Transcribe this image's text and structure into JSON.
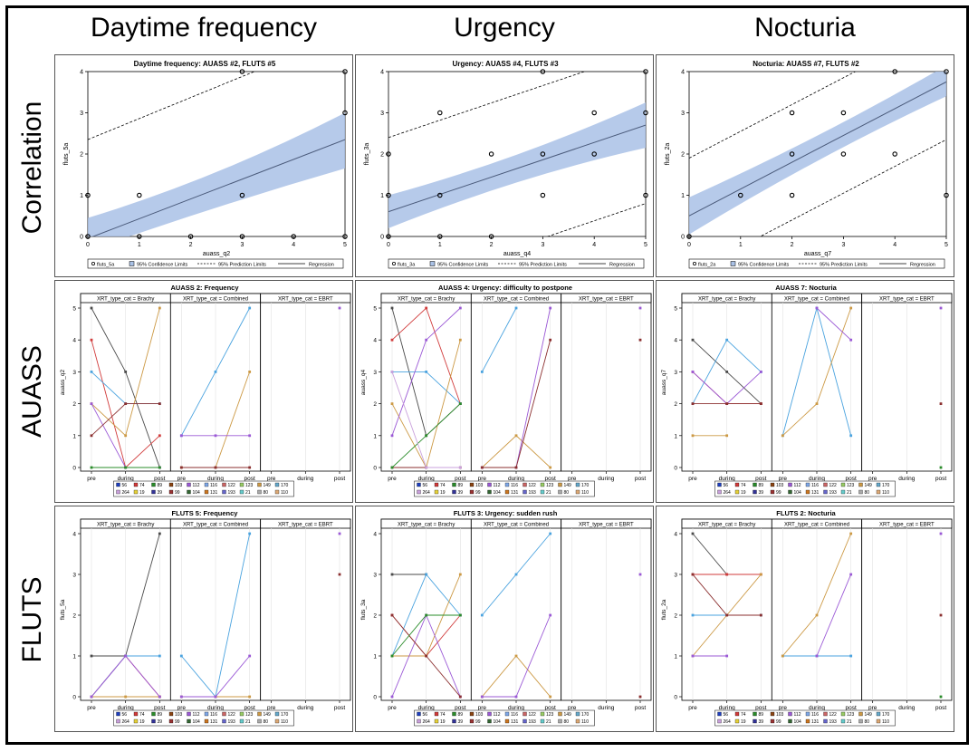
{
  "column_headers": [
    "Daytime frequency",
    "Urgency",
    "Nocturia"
  ],
  "row_headers": [
    "Correlation",
    "AUASS",
    "FLUTS"
  ],
  "chart_data": [
    {
      "type": "scatter",
      "title": "Daytime frequency: AUASS #2, FLUTS #5",
      "xlabel": "auass_q2",
      "ylabel": "fluts_5a",
      "xlim": [
        0,
        5
      ],
      "ylim": [
        0,
        4
      ],
      "xticks": [
        0,
        1,
        2,
        3,
        4,
        5
      ],
      "yticks": [
        0,
        1,
        2,
        3,
        4
      ],
      "points": [
        [
          0,
          0
        ],
        [
          0,
          1
        ],
        [
          1,
          0
        ],
        [
          1,
          1
        ],
        [
          2,
          0
        ],
        [
          3,
          0
        ],
        [
          3,
          1
        ],
        [
          3,
          4
        ],
        [
          4,
          0
        ],
        [
          5,
          0
        ],
        [
          5,
          3
        ],
        [
          5,
          4
        ]
      ],
      "regression": {
        "x0": 0,
        "y0": -0.05,
        "x1": 5,
        "y1": 2.35
      },
      "confidence": {
        "lower0": -0.35,
        "upper0": 0.45,
        "lowerMid": 0.75,
        "upperMid": 1.4,
        "lower1": 1.65,
        "upper1": 3.0
      },
      "prediction": {
        "lower0": -2.4,
        "upper0": 2.35,
        "lower1": 0.0,
        "upper1": 4.9
      },
      "legend": [
        "fluts_5a",
        "95% Confidence Limits",
        "95% Prediction Limits",
        "Regression"
      ]
    },
    {
      "type": "scatter",
      "title": "Urgency: AUASS #4, FLUTS #3",
      "xlabel": "auass_q4",
      "ylabel": "fluts_3a",
      "xlim": [
        0,
        5
      ],
      "ylim": [
        0,
        4
      ],
      "xticks": [
        0,
        1,
        2,
        3,
        4,
        5
      ],
      "yticks": [
        0,
        1,
        2,
        3,
        4
      ],
      "points": [
        [
          0,
          0
        ],
        [
          0,
          1
        ],
        [
          0,
          2
        ],
        [
          1,
          0
        ],
        [
          1,
          1
        ],
        [
          1,
          3
        ],
        [
          2,
          0
        ],
        [
          2,
          2
        ],
        [
          3,
          1
        ],
        [
          3,
          2
        ],
        [
          3,
          4
        ],
        [
          4,
          2
        ],
        [
          4,
          3
        ],
        [
          5,
          1
        ],
        [
          5,
          3
        ],
        [
          5,
          4
        ]
      ],
      "regression": {
        "x0": 0,
        "y0": 0.6,
        "x1": 5,
        "y1": 2.7
      },
      "confidence": {
        "lower0": 0.2,
        "upper0": 1.0,
        "lowerMid": 1.45,
        "upperMid": 1.85,
        "lower1": 2.15,
        "upper1": 3.25
      },
      "prediction": {
        "lower0": -1.3,
        "upper0": 2.4,
        "lower1": 0.8,
        "upper1": 4.5
      },
      "legend": [
        "fluts_3a",
        "95% Confidence Limits",
        "95% Prediction Limits",
        "Regression"
      ]
    },
    {
      "type": "scatter",
      "title": "Nocturia: AUASS #7, FLUTS #2",
      "xlabel": "auass_q7",
      "ylabel": "fluts_2a",
      "xlim": [
        0,
        5
      ],
      "ylim": [
        0,
        4
      ],
      "xticks": [
        0,
        1,
        2,
        3,
        4,
        5
      ],
      "yticks": [
        0,
        1,
        2,
        3,
        4
      ],
      "points": [
        [
          0,
          0
        ],
        [
          1,
          1
        ],
        [
          2,
          1
        ],
        [
          2,
          2
        ],
        [
          2,
          3
        ],
        [
          3,
          2
        ],
        [
          3,
          3
        ],
        [
          4,
          2
        ],
        [
          4,
          4
        ],
        [
          5,
          1
        ],
        [
          5,
          4
        ]
      ],
      "regression": {
        "x0": 0,
        "y0": 0.5,
        "x1": 5,
        "y1": 3.75
      },
      "confidence": {
        "lower0": 0.05,
        "upper0": 0.95,
        "lowerMid": 1.95,
        "upperMid": 2.35,
        "lower1": 3.4,
        "upper1": 4.15
      },
      "prediction": {
        "lower0": -0.9,
        "upper0": 1.9,
        "lower1": 2.35,
        "upper1": 5.15
      },
      "legend": [
        "fluts_2a",
        "95% Confidence Limits",
        "95% Prediction Limits",
        "Regression"
      ]
    },
    {
      "type": "line",
      "title": "AUASS 2: Frequency",
      "ylabel": "auass_q2",
      "ylim": [
        0,
        5
      ],
      "yticks": [
        0,
        1,
        2,
        3,
        4,
        5
      ],
      "categories": [
        "pre",
        "during",
        "post"
      ],
      "facets": [
        "XRT_type_cat = Brachy",
        "XRT_type_cat = Combined",
        "XRT_type_cat = EBRT"
      ],
      "series": [
        [
          [
            5,
            3,
            0
          ],
          [
            4,
            0,
            1
          ],
          [
            3,
            2,
            2
          ],
          [
            2,
            1,
            5
          ],
          [
            2,
            0,
            0
          ],
          [
            1,
            2,
            2
          ],
          [
            0,
            0,
            0
          ]
        ],
        [
          [
            1,
            3,
            5
          ],
          [
            0,
            0,
            3
          ],
          [
            1,
            1,
            1
          ],
          [
            0,
            0,
            0
          ]
        ],
        [
          [
            null,
            null,
            5
          ]
        ]
      ]
    },
    {
      "type": "line",
      "title": "AUASS 4: Urgency: difficulty to postpone",
      "ylabel": "auass_q4",
      "ylim": [
        0,
        5
      ],
      "yticks": [
        0,
        1,
        2,
        3,
        4,
        5
      ],
      "categories": [
        "pre",
        "during",
        "post"
      ],
      "facets": [
        "XRT_type_cat = Brachy",
        "XRT_type_cat = Combined",
        "XRT_type_cat = EBRT"
      ],
      "series": [
        [
          [
            5,
            1,
            2
          ],
          [
            4,
            5,
            2
          ],
          [
            3,
            3,
            2
          ],
          [
            2,
            0,
            4
          ],
          [
            1,
            4,
            5
          ],
          [
            0,
            0,
            0
          ],
          [
            0,
            1,
            2
          ],
          [
            3,
            0,
            0
          ]
        ],
        [
          [
            3,
            5,
            null
          ],
          [
            0,
            1,
            0
          ],
          [
            0,
            0,
            5
          ],
          [
            0,
            0,
            4
          ]
        ],
        [
          [
            null,
            null,
            5
          ],
          [
            null,
            null,
            4
          ]
        ]
      ]
    },
    {
      "type": "line",
      "title": "AUASS 7: Nocturia",
      "ylabel": "auass_q7",
      "ylim": [
        0,
        5
      ],
      "yticks": [
        0,
        1,
        2,
        3,
        4,
        5
      ],
      "categories": [
        "pre",
        "during",
        "post"
      ],
      "facets": [
        "XRT_type_cat = Brachy",
        "XRT_type_cat = Combined",
        "XRT_type_cat = EBRT"
      ],
      "series": [
        [
          [
            4,
            3,
            2
          ],
          [
            3,
            2,
            2
          ],
          [
            2,
            4,
            3
          ],
          [
            1,
            1,
            null
          ],
          [
            3,
            2,
            3
          ],
          [
            2,
            2,
            2
          ]
        ],
        [
          [
            1,
            5,
            1
          ],
          [
            1,
            2,
            5
          ],
          [
            null,
            5,
            4
          ]
        ],
        [
          [
            null,
            null,
            5
          ],
          [
            null,
            null,
            2
          ],
          [
            null,
            null,
            0
          ]
        ]
      ]
    },
    {
      "type": "line",
      "title": "FLUTS 5: Frequency",
      "ylabel": "fluts_5a",
      "ylim": [
        0,
        4
      ],
      "yticks": [
        0,
        1,
        2,
        3,
        4
      ],
      "categories": [
        "pre",
        "during",
        "post"
      ],
      "facets": [
        "XRT_type_cat = Brachy",
        "XRT_type_cat = Combined",
        "XRT_type_cat = EBRT"
      ],
      "series": [
        [
          [
            1,
            1,
            4
          ],
          [
            0,
            1,
            0
          ],
          [
            0,
            1,
            1
          ],
          [
            0,
            0,
            0
          ],
          [
            0,
            1,
            0
          ]
        ],
        [
          [
            1,
            0,
            4
          ],
          [
            0,
            0,
            0
          ],
          [
            0,
            0,
            1
          ]
        ],
        [
          [
            null,
            null,
            4
          ],
          [
            null,
            null,
            3
          ]
        ]
      ]
    },
    {
      "type": "line",
      "title": "FLUTS 3: Urgency: sudden rush",
      "ylabel": "fluts_3a",
      "ylim": [
        0,
        4
      ],
      "yticks": [
        0,
        1,
        2,
        3,
        4
      ],
      "categories": [
        "pre",
        "during",
        "post"
      ],
      "facets": [
        "XRT_type_cat = Brachy",
        "XRT_type_cat = Combined",
        "XRT_type_cat = EBRT"
      ],
      "series": [
        [
          [
            3,
            3,
            null
          ],
          [
            2,
            1,
            2
          ],
          [
            1,
            3,
            2
          ],
          [
            1,
            1,
            3
          ],
          [
            0,
            2,
            0
          ],
          [
            2,
            1,
            0
          ],
          [
            1,
            2,
            2
          ]
        ],
        [
          [
            2,
            3,
            4
          ],
          [
            0,
            1,
            0
          ],
          [
            0,
            0,
            2
          ]
        ],
        [
          [
            null,
            null,
            3
          ],
          [
            null,
            null,
            0
          ]
        ]
      ]
    },
    {
      "type": "line",
      "title": "FLUTS 2: Nocturia",
      "ylabel": "fluts_2a",
      "ylim": [
        0,
        4
      ],
      "yticks": [
        0,
        1,
        2,
        3,
        4
      ],
      "categories": [
        "pre",
        "during",
        "post"
      ],
      "facets": [
        "XRT_type_cat = Brachy",
        "XRT_type_cat = Combined",
        "XRT_type_cat = EBRT"
      ],
      "series": [
        [
          [
            4,
            3,
            null
          ],
          [
            3,
            3,
            3
          ],
          [
            2,
            2,
            2
          ],
          [
            1,
            2,
            3
          ],
          [
            1,
            1,
            null
          ],
          [
            3,
            2,
            2
          ]
        ],
        [
          [
            1,
            1,
            1
          ],
          [
            1,
            2,
            4
          ],
          [
            null,
            1,
            3
          ]
        ],
        [
          [
            null,
            null,
            4
          ],
          [
            null,
            null,
            2
          ],
          [
            null,
            null,
            0
          ]
        ]
      ]
    }
  ],
  "legend_ids": [
    "56",
    "74",
    "89",
    "103",
    "112",
    "116",
    "122",
    "123",
    "149",
    "170",
    "264",
    "19",
    "39",
    "99",
    "104",
    "131",
    "193",
    "21",
    "80",
    "110"
  ],
  "legend_colors": [
    "#1f3fbf",
    "#d13b3b",
    "#2a8c2a",
    "#8b4513",
    "#9b59d6",
    "#7fa8e8",
    "#cc6666",
    "#99cc66",
    "#cc9944",
    "#66aacc",
    "#c9a0dc",
    "#e6d23a",
    "#333399",
    "#993333",
    "#336633",
    "#cc7722",
    "#6666cc",
    "#66cccc",
    "#aaaaaa",
    "#ddaa77"
  ],
  "series_colors": [
    "#4a4a4a",
    "#d13b3b",
    "#4aa3df",
    "#cc9944",
    "#9b59d6",
    "#8b2f2f",
    "#2a8c2a",
    "#c9a0dc"
  ]
}
